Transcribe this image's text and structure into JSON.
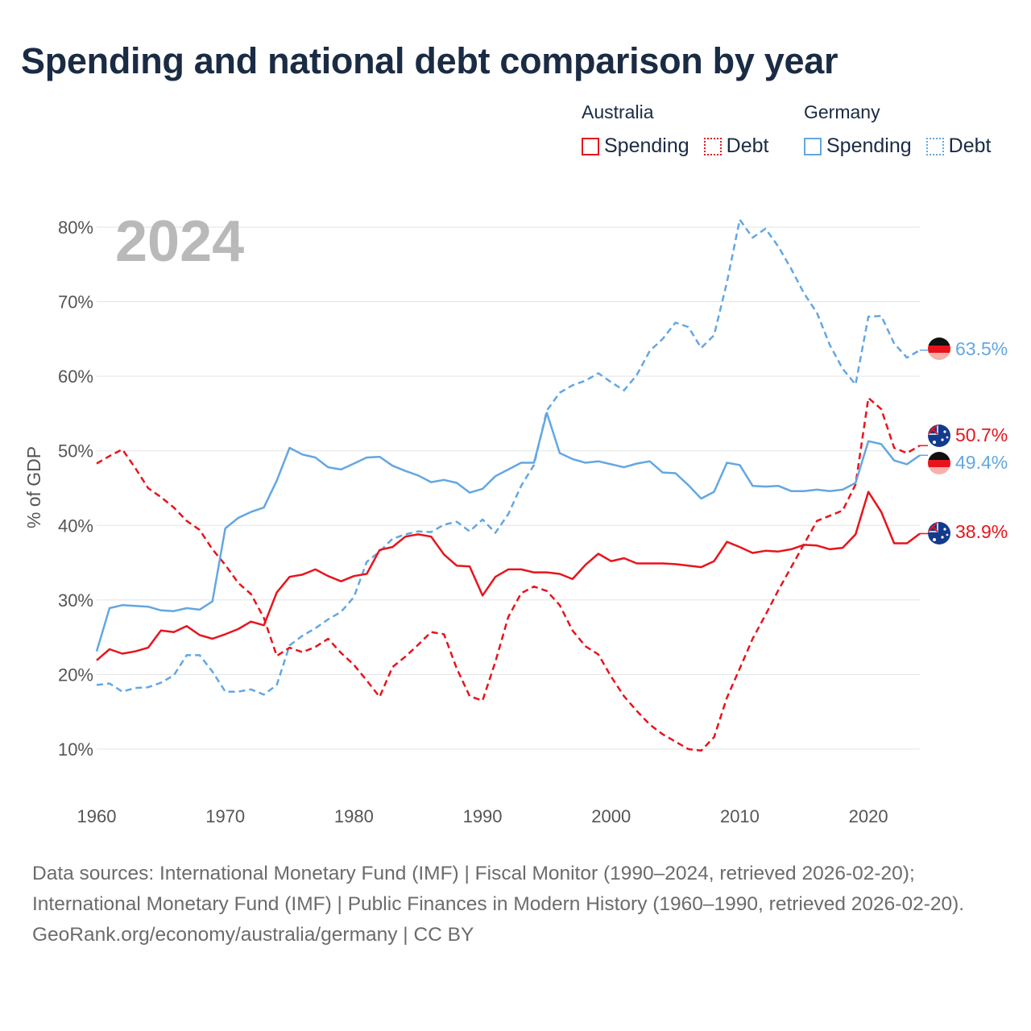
{
  "title": "Spending and national debt comparison by year",
  "legend": {
    "groups": [
      {
        "name": "Australia",
        "items": [
          {
            "label": "Spending",
            "style": "solid",
            "color": "#e8141c"
          },
          {
            "label": "Debt",
            "style": "dotted",
            "color": "#e8141c"
          }
        ]
      },
      {
        "name": "Germany",
        "items": [
          {
            "label": "Spending",
            "style": "solid",
            "color": "#63a7e2"
          },
          {
            "label": "Debt",
            "style": "dotted",
            "color": "#63a7e2"
          }
        ]
      }
    ]
  },
  "chart_data": {
    "type": "line",
    "year_label": "2024",
    "ylabel": "% of GDP",
    "xlim": [
      1960,
      2024
    ],
    "ylim": [
      6,
      82
    ],
    "x_ticks": [
      1960,
      1970,
      1980,
      1990,
      2000,
      2010,
      2020
    ],
    "y_ticks": [
      10,
      20,
      30,
      40,
      50,
      60,
      70,
      80
    ],
    "y_tick_labels": [
      "10%",
      "20%",
      "30%",
      "40%",
      "50%",
      "60%",
      "70%",
      "80%"
    ],
    "years": [
      1960,
      1961,
      1962,
      1963,
      1964,
      1965,
      1966,
      1967,
      1968,
      1969,
      1970,
      1971,
      1972,
      1973,
      1974,
      1975,
      1976,
      1977,
      1978,
      1979,
      1980,
      1981,
      1982,
      1983,
      1984,
      1985,
      1986,
      1987,
      1988,
      1989,
      1990,
      1991,
      1992,
      1993,
      1994,
      1995,
      1996,
      1997,
      1998,
      1999,
      2000,
      2001,
      2002,
      2003,
      2004,
      2005,
      2006,
      2007,
      2008,
      2009,
      2010,
      2011,
      2012,
      2013,
      2014,
      2015,
      2016,
      2017,
      2018,
      2019,
      2020,
      2021,
      2022,
      2023,
      2024
    ],
    "series": [
      {
        "name": "Australia Spending",
        "country": "Australia",
        "measure": "Spending",
        "color": "#e8141c",
        "dash": "solid",
        "end_label": "38.9%",
        "values": [
          21.9,
          23.4,
          22.8,
          23.1,
          23.6,
          25.9,
          25.7,
          26.5,
          25.3,
          24.8,
          25.4,
          26.1,
          27.1,
          26.6,
          31.0,
          33.1,
          33.4,
          34.1,
          33.2,
          32.5,
          33.2,
          33.5,
          36.7,
          37.1,
          38.5,
          38.8,
          38.5,
          36.1,
          34.6,
          34.5,
          30.6,
          33.1,
          34.1,
          34.1,
          33.7,
          33.7,
          33.5,
          32.8,
          34.7,
          36.2,
          35.2,
          35.6,
          34.9,
          34.9,
          34.9,
          34.8,
          34.6,
          34.4,
          35.2,
          37.8,
          37.1,
          36.3,
          36.6,
          36.5,
          36.8,
          37.4,
          37.3,
          36.8,
          37.0,
          38.8,
          44.5,
          41.8,
          37.6,
          37.6,
          38.9
        ]
      },
      {
        "name": "Australia Debt",
        "country": "Australia",
        "measure": "Debt",
        "color": "#e8141c",
        "dash": "dashed",
        "end_label": "50.7%",
        "values": [
          48.3,
          49.3,
          50.2,
          47.7,
          45.0,
          43.8,
          42.4,
          40.6,
          39.4,
          36.8,
          34.7,
          32.3,
          30.8,
          27.6,
          22.5,
          23.6,
          23.0,
          23.7,
          24.8,
          22.9,
          21.3,
          19.2,
          17.0,
          21.0,
          22.4,
          24.0,
          25.7,
          25.4,
          20.8,
          17.1,
          16.5,
          21.7,
          27.7,
          30.9,
          31.8,
          31.2,
          29.3,
          25.9,
          23.8,
          22.7,
          19.7,
          17.1,
          15.1,
          13.3,
          12.0,
          11.0,
          10.0,
          9.8,
          11.6,
          16.9,
          20.8,
          24.8,
          28.0,
          31.3,
          34.4,
          37.5,
          40.6,
          41.3,
          42.0,
          45.5,
          57.1,
          55.6,
          50.4,
          49.7,
          50.7
        ]
      },
      {
        "name": "Germany Spending",
        "country": "Germany",
        "measure": "Spending",
        "color": "#63a7e2",
        "dash": "solid",
        "end_label": "49.4%",
        "values": [
          23.1,
          28.9,
          29.3,
          29.2,
          29.1,
          28.6,
          28.5,
          28.9,
          28.7,
          29.8,
          39.6,
          41.0,
          41.8,
          42.4,
          46.0,
          50.4,
          49.5,
          49.1,
          47.8,
          47.5,
          48.3,
          49.1,
          49.2,
          48.0,
          47.3,
          46.7,
          45.8,
          46.1,
          45.7,
          44.4,
          44.9,
          46.6,
          47.5,
          48.4,
          48.4,
          55.1,
          49.7,
          48.9,
          48.4,
          48.6,
          48.2,
          47.8,
          48.3,
          48.6,
          47.1,
          47.0,
          45.4,
          43.6,
          44.5,
          48.4,
          48.1,
          45.3,
          45.2,
          45.3,
          44.6,
          44.6,
          44.8,
          44.6,
          44.8,
          45.7,
          51.3,
          50.9,
          48.7,
          48.2,
          49.4
        ]
      },
      {
        "name": "Germany Debt",
        "country": "Germany",
        "measure": "Debt",
        "color": "#63a7e2",
        "dash": "dashed",
        "end_label": "63.5%",
        "values": [
          18.6,
          18.8,
          17.7,
          18.2,
          18.3,
          18.9,
          19.9,
          22.6,
          22.6,
          20.4,
          17.7,
          17.7,
          18.0,
          17.3,
          18.6,
          23.9,
          25.2,
          26.2,
          27.4,
          28.4,
          30.4,
          35.1,
          36.5,
          38.2,
          38.8,
          39.2,
          39.1,
          40.1,
          40.5,
          39.2,
          40.8,
          39.0,
          41.5,
          45.3,
          48.1,
          55.4,
          57.8,
          58.8,
          59.4,
          60.4,
          59.2,
          58.1,
          60.2,
          63.4,
          65.0,
          67.2,
          66.6,
          63.8,
          65.5,
          72.6,
          81.0,
          78.6,
          79.8,
          77.4,
          74.4,
          71.1,
          68.5,
          64.2,
          61.0,
          58.9,
          68.0,
          68.1,
          64.4,
          62.5,
          63.5
        ]
      }
    ]
  }
}
